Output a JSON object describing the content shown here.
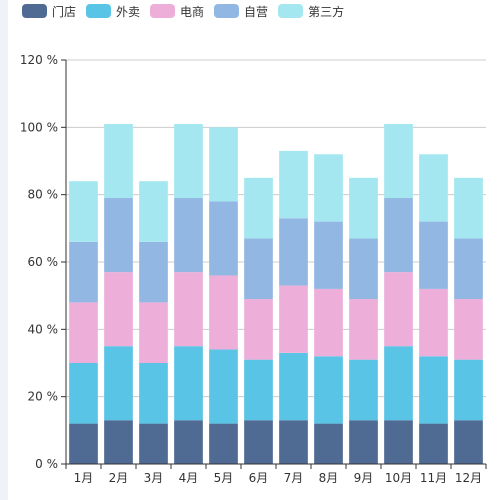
{
  "chart_data": {
    "type": "bar",
    "stacked": true,
    "categories": [
      "1月",
      "2月",
      "3月",
      "4月",
      "5月",
      "6月",
      "7月",
      "8月",
      "9月",
      "10月",
      "11月",
      "12月"
    ],
    "series": [
      {
        "name": "门店",
        "color": "#4f6a93",
        "values": [
          12,
          13,
          12,
          13,
          12,
          13,
          13,
          12,
          13,
          13,
          12,
          13
        ]
      },
      {
        "name": "外卖",
        "color": "#59c4e6",
        "values": [
          18,
          22,
          18,
          22,
          22,
          18,
          20,
          20,
          18,
          22,
          20,
          18
        ]
      },
      {
        "name": "电商",
        "color": "#edafda",
        "values": [
          18,
          22,
          18,
          22,
          22,
          18,
          20,
          20,
          18,
          22,
          20,
          18
        ]
      },
      {
        "name": "自营",
        "color": "#93b7e3",
        "values": [
          18,
          22,
          18,
          22,
          22,
          18,
          20,
          20,
          18,
          22,
          20,
          18
        ]
      },
      {
        "name": "第三方",
        "color": "#a5e7f0",
        "values": [
          18,
          22,
          18,
          22,
          22,
          18,
          20,
          20,
          18,
          22,
          20,
          18
        ]
      }
    ],
    "ylim": [
      0,
      120
    ],
    "yticks": [
      "0 %",
      "20 %",
      "40 %",
      "60 %",
      "80 %",
      "100 %",
      "120 %"
    ],
    "ytick_values": [
      0,
      20,
      40,
      60,
      80,
      100,
      120
    ],
    "grid": true,
    "legend_position": "top-left"
  }
}
